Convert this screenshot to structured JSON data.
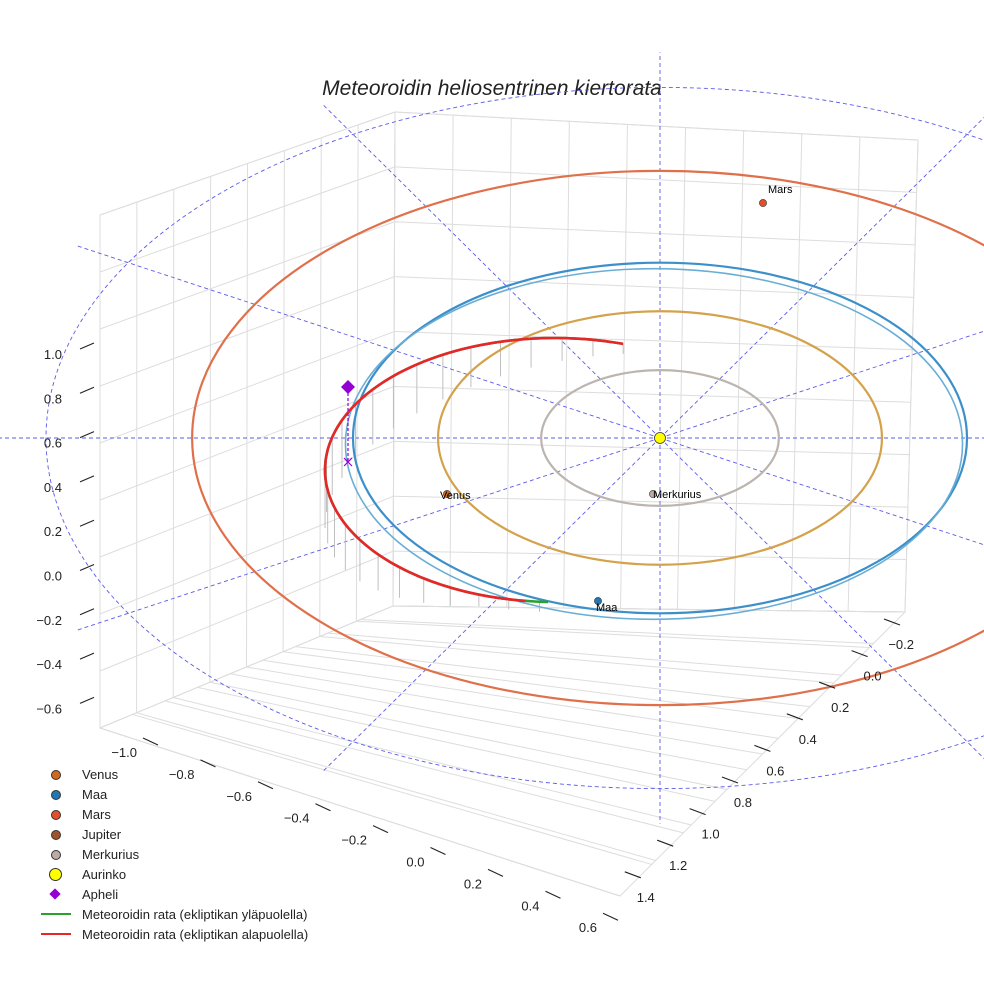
{
  "chart_data": {
    "type": "line",
    "title": "Meteoroidin heliosentrinen kiertorata",
    "projection": "3d",
    "axes": {
      "x": {
        "ticks": [
          "−1.0",
          "−0.8",
          "−0.6",
          "−0.4",
          "−0.2",
          "0.0",
          "0.2",
          "0.4",
          "0.6"
        ],
        "range": [
          -1.05,
          0.65
        ]
      },
      "y": {
        "ticks": [
          "−0.2",
          "0.0",
          "0.2",
          "0.4",
          "0.6",
          "0.8",
          "1.0",
          "1.2",
          "1.4"
        ],
        "range": [
          -0.3,
          1.45
        ]
      },
      "z": {
        "ticks": [
          "−0.6",
          "−0.4",
          "−0.2",
          "0.0",
          "0.2",
          "0.4",
          "0.6",
          "0.8",
          "1.0"
        ],
        "range": [
          -0.65,
          1.05
        ]
      },
      "grid": true
    },
    "planet_orbits": [
      {
        "name": "Merkurius",
        "radius_au": 0.387,
        "color": "#bcb4ae"
      },
      {
        "name": "Venus",
        "radius_au": 0.723,
        "color": "#d4a24c"
      },
      {
        "name": "Maa",
        "radius_au": 1.0,
        "color": "#3c8fc9"
      },
      {
        "name": "Mars",
        "radius_au": 1.524,
        "color": "#e0704a"
      }
    ],
    "bodies": [
      {
        "name": "Venus",
        "label": "Venus",
        "color": "#d2691e"
      },
      {
        "name": "Maa",
        "label": "Maa",
        "color": "#1f77b4"
      },
      {
        "name": "Mars",
        "label": "Mars",
        "color": "#e2502a"
      },
      {
        "name": "Merkurius",
        "label": "Merkurius",
        "color": "#bcaaa4"
      },
      {
        "name": "Aurinko",
        "label": "",
        "color": "#ffff00"
      }
    ],
    "meteoroid_orbit": {
      "above_ecliptic": {
        "name": "Meteoroidin rata (ekliptikan yläpuolella)",
        "color": "#2ca02c"
      },
      "below_ecliptic": {
        "name": "Meteoroidin rata (ekliptikan alapuolella)",
        "color": "#e8262a"
      }
    },
    "aphelion": {
      "name": "Apheli",
      "color": "#9400d3"
    },
    "legend_position": "bottom-left",
    "legend": [
      {
        "label": "Venus",
        "marker": "dot",
        "color": "#d2691e"
      },
      {
        "label": "Maa",
        "marker": "dot",
        "color": "#1f77b4"
      },
      {
        "label": "Mars",
        "marker": "dot",
        "color": "#e2502a"
      },
      {
        "label": "Jupiter",
        "marker": "dot",
        "color": "#a0522d"
      },
      {
        "label": "Merkurius",
        "marker": "dot",
        "color": "#bcaaa4"
      },
      {
        "label": "Aurinko",
        "marker": "big-dot",
        "color": "#ffff00"
      },
      {
        "label": "Apheli",
        "marker": "diamond",
        "color": "#9400d3"
      },
      {
        "label": "Meteoroidin rata (ekliptikan yläpuolella)",
        "marker": "line",
        "color": "#2ca02c"
      },
      {
        "label": "Meteoroidin rata (ekliptikan alapuolella)",
        "marker": "line",
        "color": "#e8262a"
      }
    ]
  }
}
